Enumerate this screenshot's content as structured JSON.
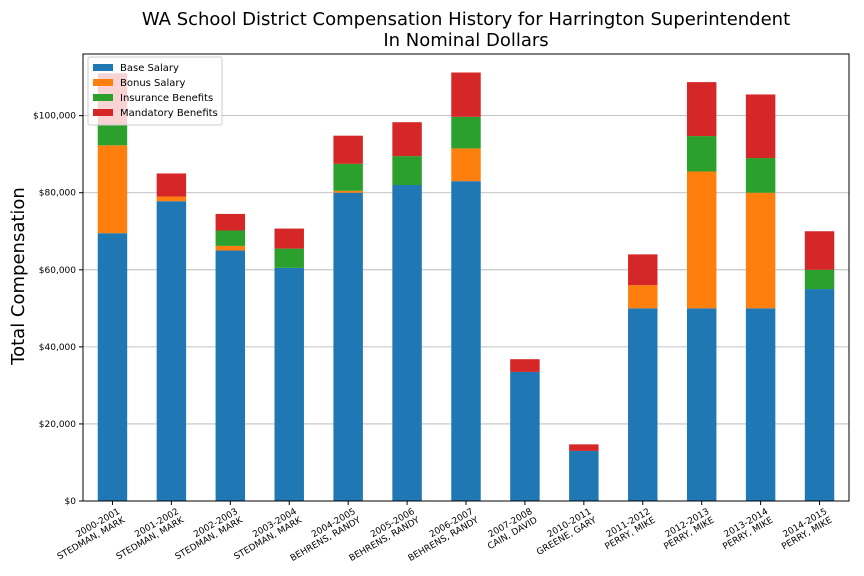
{
  "chart_data": {
    "type": "bar",
    "stacked": true,
    "title": "WA School District Compensation History for Harrington Superintendent",
    "subtitle": "In Nominal Dollars",
    "xlabel": "",
    "ylabel": "Total Compensation",
    "ylim": [
      0,
      116000
    ],
    "yticks": [
      "$0",
      "$20,000",
      "$40,000",
      "$60,000",
      "$80,000",
      "$100,000"
    ],
    "ytick_values": [
      0,
      20000,
      40000,
      60000,
      80000,
      100000
    ],
    "grid": "horizontal",
    "legend_position": "top-left",
    "categories": [
      [
        "2000-2001",
        "STEDMAN, MARK"
      ],
      [
        "2001-2002",
        "STEDMAN, MARK"
      ],
      [
        "2002-2003",
        "STEDMAN, MARK"
      ],
      [
        "2003-2004",
        "STEDMAN, MARK"
      ],
      [
        "2004-2005",
        "BEHRENS, RANDY"
      ],
      [
        "2005-2006",
        "BEHRENS, RANDY"
      ],
      [
        "2006-2007",
        "BEHRENS, RANDY"
      ],
      [
        "2007-2008",
        "CAIN, DAVID"
      ],
      [
        "2010-2011",
        "GREENE, GARY"
      ],
      [
        "2011-2012",
        "PERRY, MIKE"
      ],
      [
        "2012-2013",
        "PERRY, MIKE"
      ],
      [
        "2013-2014",
        "PERRY, MIKE"
      ],
      [
        "2014-2015",
        "PERRY, MIKE"
      ]
    ],
    "series": [
      {
        "name": "Base Salary",
        "color": "#1f77b4",
        "values": [
          69500,
          77800,
          65000,
          60500,
          80000,
          82000,
          83000,
          33500,
          13000,
          50000,
          50000,
          50000,
          55000
        ]
      },
      {
        "name": "Bonus Salary",
        "color": "#ff7f0e",
        "values": [
          22800,
          1200,
          1200,
          0,
          500,
          0,
          8500,
          0,
          0,
          6000,
          35500,
          30000,
          0
        ]
      },
      {
        "name": "Insurance Benefits",
        "color": "#2ca02c",
        "values": [
          5200,
          0,
          4000,
          5000,
          7000,
          7500,
          8200,
          0,
          0,
          0,
          9200,
          9000,
          5000
        ]
      },
      {
        "name": "Mandatory Benefits",
        "color": "#d62728",
        "values": [
          13500,
          6000,
          4300,
          5200,
          7300,
          8800,
          11500,
          3300,
          1700,
          8000,
          14000,
          16500,
          10000
        ]
      }
    ]
  }
}
